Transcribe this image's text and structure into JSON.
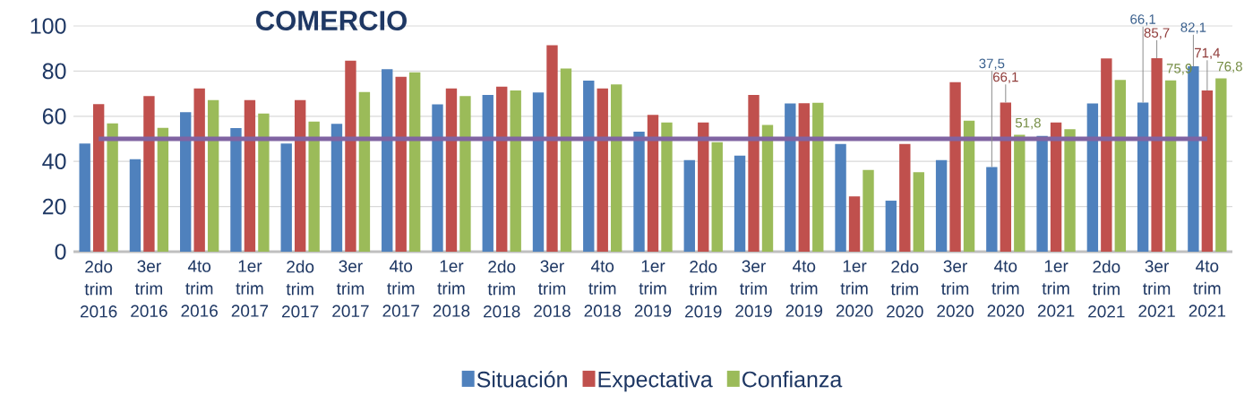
{
  "chart_data": {
    "type": "bar",
    "title": "COMERCIO",
    "categories": [
      "2do trim 2016",
      "3er trim 2016",
      "4to trim 2016",
      "1er trim 2017",
      "2do trim 2017",
      "3er trim 2017",
      "4to trim 2017",
      "1er trim 2018",
      "2do trim 2018",
      "3er trim 2018",
      "4to trim 2018",
      "1er trim 2019",
      "2do trim 2019",
      "3er trim 2019",
      "4to trim 2019",
      "1er trim 2020",
      "2do trim 2020",
      "3er trim 2020",
      "4to trim 2020",
      "1er trim 2021",
      "2do trim 2021",
      "3er trim 2021",
      "4to trim 2021"
    ],
    "series": [
      {
        "name": "Situación",
        "color": "#4f81bd",
        "values": [
          47.9,
          41,
          61.8,
          54.8,
          47.9,
          56.6,
          80.9,
          65.3,
          69.4,
          70.5,
          75.8,
          53.2,
          40.6,
          42.6,
          65.7,
          47.7,
          22.6,
          40.6,
          37.5,
          51.3,
          65.7,
          66.1,
          82.1
        ],
        "value_labels": [
          null,
          null,
          null,
          null,
          null,
          null,
          null,
          null,
          null,
          null,
          null,
          null,
          null,
          null,
          null,
          null,
          null,
          null,
          "37,5",
          null,
          null,
          "66,1",
          "82,1"
        ]
      },
      {
        "name": "Expectativa",
        "color": "#c0504d",
        "values": [
          65.4,
          68.9,
          72.3,
          67.2,
          67.2,
          84.6,
          77.5,
          72.3,
          73.1,
          91.5,
          72.3,
          60.6,
          57.2,
          69.4,
          65.8,
          24.5,
          47.7,
          75.1,
          66.1,
          57.2,
          85.6,
          85.7,
          71.4
        ],
        "value_labels": [
          null,
          null,
          null,
          null,
          null,
          null,
          null,
          null,
          null,
          null,
          null,
          null,
          null,
          null,
          null,
          null,
          null,
          null,
          "66,1",
          null,
          null,
          "85,7",
          "71,4"
        ]
      },
      {
        "name": "Confianza",
        "color": "#9bbb59",
        "values": [
          56.8,
          54.9,
          67.2,
          61.2,
          57.6,
          70.7,
          79.5,
          68.9,
          71.4,
          81.1,
          74.1,
          57.2,
          48.5,
          56.1,
          66,
          36.2,
          35.2,
          58,
          51.8,
          54.3,
          76.1,
          75.9,
          76.8
        ],
        "value_labels": [
          null,
          null,
          null,
          null,
          null,
          null,
          null,
          null,
          null,
          null,
          null,
          null,
          null,
          null,
          null,
          null,
          null,
          null,
          "51,8",
          null,
          null,
          "75,9",
          "76,8"
        ]
      }
    ],
    "ylim": [
      0,
      100
    ],
    "yticks": [
      0,
      20,
      40,
      60,
      80,
      100
    ],
    "grid": "y",
    "legend": "bottom",
    "ref_lines": [
      {
        "axis": "y",
        "value": 50,
        "color": "#8064a2"
      }
    ]
  }
}
